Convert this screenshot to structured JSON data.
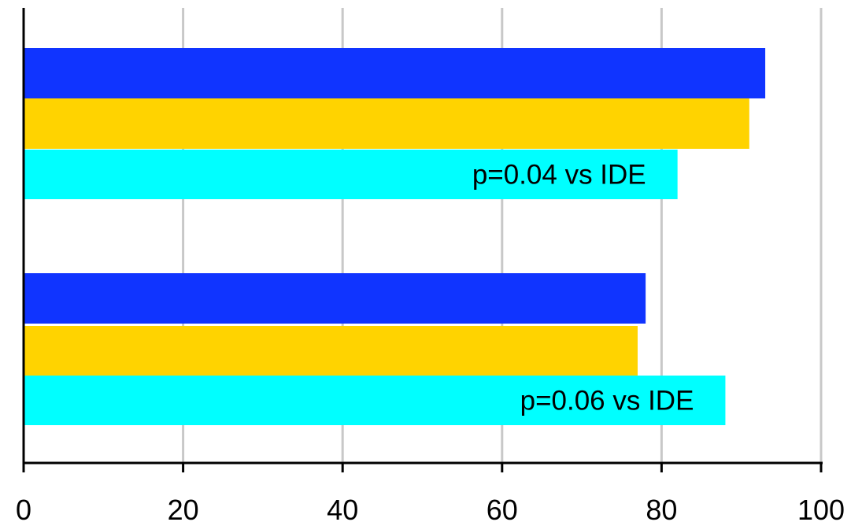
{
  "chart_data": {
    "type": "bar",
    "orientation": "horizontal",
    "title": "",
    "xlabel": "",
    "ylabel": "",
    "xlim": [
      0,
      100
    ],
    "x_ticks": [
      0,
      20,
      40,
      60,
      80,
      100
    ],
    "x_tick_labels": [
      "0",
      "20",
      "40",
      "60",
      "80",
      "100"
    ],
    "grid": "vertical",
    "legend": "none",
    "categories": [
      "",
      ""
    ],
    "series": [
      {
        "color": "#1034ff",
        "values": [
          93,
          78
        ]
      },
      {
        "color": "#ffd300",
        "values": [
          91,
          77
        ]
      },
      {
        "color": "#00ffff",
        "values": [
          82,
          88
        ]
      }
    ],
    "annotations": [
      {
        "text": "p=0.04 vs IDE",
        "category_index": 0,
        "series_index": 2
      },
      {
        "text": "p=0.06 vs IDE",
        "category_index": 1,
        "series_index": 2
      }
    ]
  }
}
